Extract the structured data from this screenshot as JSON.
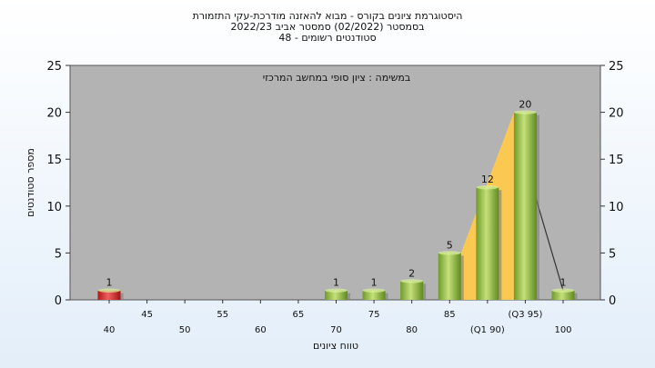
{
  "title_lines": [
    "היסטוגרמת ציונים בקורס - מבוא להאזנה מודרכת-עקי התזמורת",
    "בסמסטר  (02/2022)  סמסטר אביב 2022/23",
    "סטודנטים רשומים - 48"
  ],
  "chart_data": {
    "type": "bar",
    "title": "היסטוגרמת ציונים בקורס - מבוא להאזנה מודרכת-עקי התזמורת",
    "subtitle": "במשימה : ציון סופי במחשב המרכזי",
    "xlabel": "טווח ציונים",
    "ylabel": "מספר סטודנטים",
    "ylim": [
      0,
      25
    ],
    "yticks": [
      0,
      5,
      10,
      15,
      20,
      25
    ],
    "grid": false,
    "categories": [
      "40",
      "45",
      "50",
      "55",
      "60",
      "65",
      "70",
      "75",
      "80",
      "85",
      "(Q1 90)",
      "(Q3 95)",
      "100"
    ],
    "values": [
      1,
      0,
      0,
      0,
      0,
      0,
      1,
      1,
      2,
      5,
      12,
      20,
      1
    ],
    "bar_colors": [
      "#d62728",
      "#8fbc3b",
      "#8fbc3b",
      "#8fbc3b",
      "#8fbc3b",
      "#8fbc3b",
      "#8fbc3b",
      "#8fbc3b",
      "#8fbc3b",
      "#8fbc3b",
      "#8fbc3b",
      "#8fbc3b",
      "#8fbc3b"
    ],
    "plot_background": "#b3b3b3",
    "area_color": "#ffc94d"
  }
}
